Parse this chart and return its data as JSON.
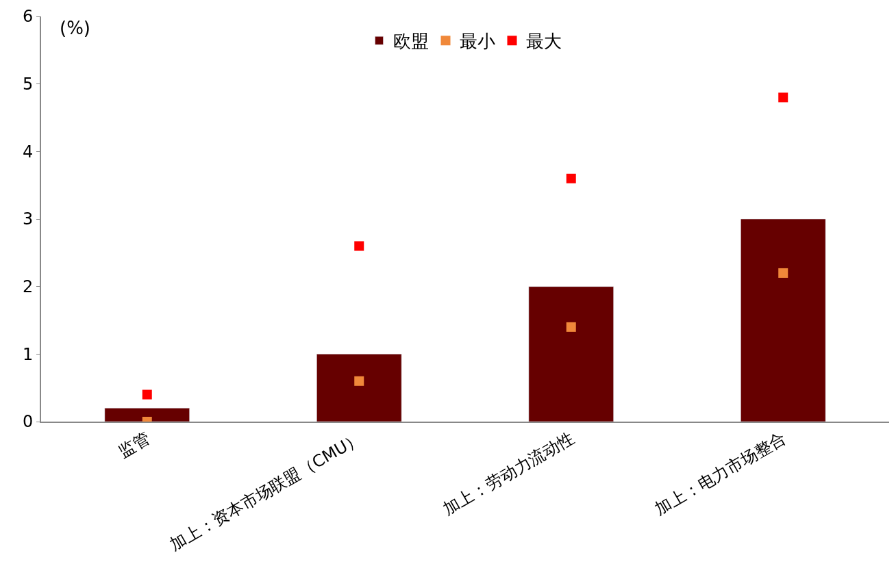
{
  "chart_data": {
    "type": "bar",
    "ylabel": "(%)",
    "categories": [
      "监管",
      "加上：资本市场联盟（CMU）",
      "加上：劳动力流动性",
      "加上：电力市场整合"
    ],
    "series": [
      {
        "name": "欧盟",
        "color": "#660000",
        "values": [
          0.2,
          1,
          2,
          3
        ]
      },
      {
        "name": "最小",
        "type": "scatter",
        "color": "#f0883a",
        "values": [
          0,
          0.6,
          1.4,
          2.2
        ]
      },
      {
        "name": "最大",
        "type": "scatter",
        "color": "#ff0000",
        "values": [
          0.4,
          2.6,
          3.6,
          4.8
        ]
      }
    ],
    "ylim": [
      0,
      6
    ],
    "yticks": [
      0,
      1,
      2,
      3,
      4,
      5,
      6
    ],
    "grid": false,
    "marker": "square",
    "legend": "top"
  }
}
